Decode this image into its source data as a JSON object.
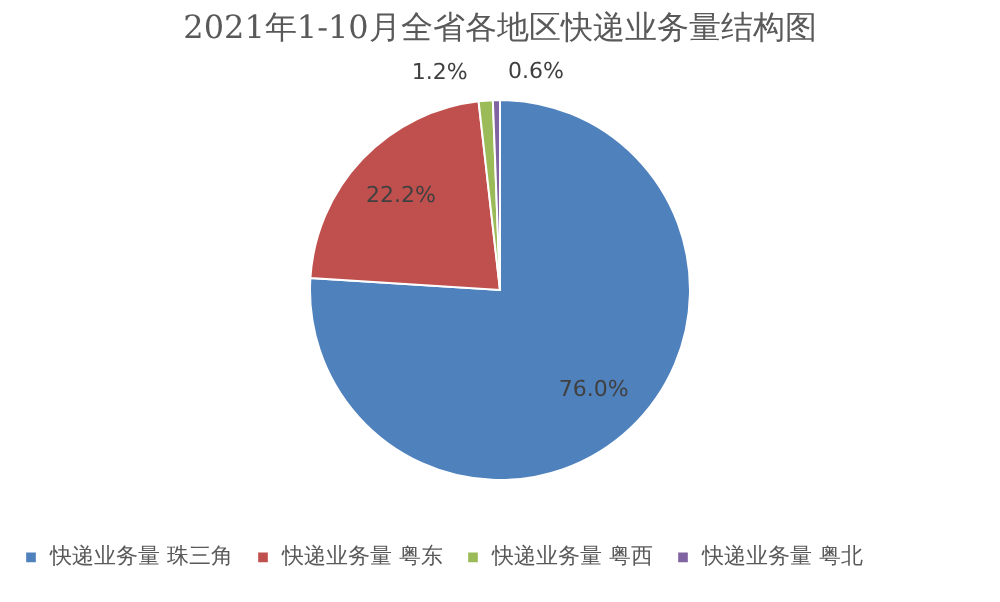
{
  "chart_data": {
    "type": "pie",
    "title": "2021年1-10月全省各地区快递业务量结构图",
    "categories": [
      "快递业务量 珠三角",
      "快递业务量 粤东",
      "快递业务量 粤西",
      "快递业务量 粤北"
    ],
    "values": [
      76.0,
      22.2,
      1.2,
      0.6
    ],
    "colors": [
      "#4f81bd",
      "#c0504d",
      "#9bbb59",
      "#8064a2"
    ],
    "value_labels": [
      "76.0%",
      "22.2%",
      "1.2%",
      "0.6%"
    ],
    "legend": "bottom"
  }
}
